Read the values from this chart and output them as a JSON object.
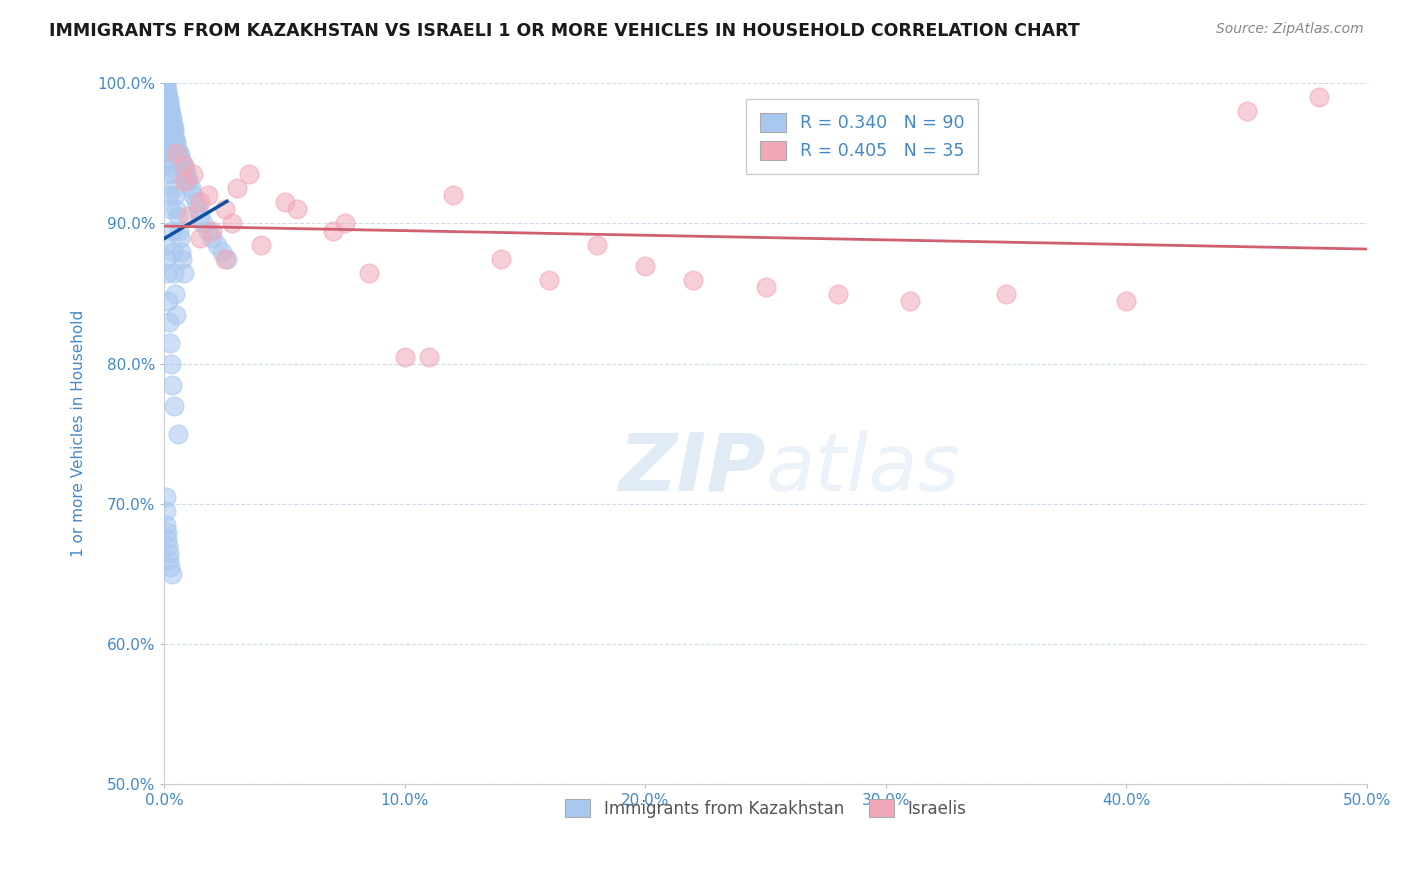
{
  "title": "IMMIGRANTS FROM KAZAKHSTAN VS ISRAELI 1 OR MORE VEHICLES IN HOUSEHOLD CORRELATION CHART",
  "source": "Source: ZipAtlas.com",
  "ylabel": "1 or more Vehicles in Household",
  "xlim": [
    0.0,
    50.0
  ],
  "ylim": [
    50.0,
    100.0
  ],
  "xticks": [
    0.0,
    10.0,
    20.0,
    30.0,
    40.0,
    50.0
  ],
  "yticks": [
    50.0,
    60.0,
    70.0,
    80.0,
    90.0,
    100.0
  ],
  "color_blue": "#A8C8F0",
  "color_pink": "#F0A8B8",
  "line_blue": "#1050A0",
  "line_pink": "#D06070",
  "legend_label1": "Immigrants from Kazakhstan",
  "legend_label2": "Israelis",
  "watermark_zip": "ZIP",
  "watermark_atlas": "atlas",
  "blue_x": [
    0.05,
    0.08,
    0.1,
    0.12,
    0.15,
    0.18,
    0.2,
    0.22,
    0.25,
    0.28,
    0.3,
    0.32,
    0.35,
    0.38,
    0.4,
    0.42,
    0.45,
    0.48,
    0.5,
    0.55,
    0.6,
    0.65,
    0.7,
    0.75,
    0.8,
    0.85,
    0.9,
    0.95,
    1.0,
    1.1,
    1.2,
    1.3,
    1.4,
    1.5,
    1.6,
    1.8,
    2.0,
    2.2,
    2.4,
    2.6,
    0.05,
    0.08,
    0.12,
    0.18,
    0.25,
    0.35,
    0.45,
    0.55,
    0.65,
    0.75,
    0.1,
    0.15,
    0.2,
    0.25,
    0.3,
    0.4,
    0.5,
    0.6,
    0.7,
    0.8,
    0.05,
    0.1,
    0.15,
    0.2,
    0.25,
    0.3,
    0.35,
    0.4,
    0.45,
    0.5,
    0.05,
    0.08,
    0.1,
    0.15,
    0.18,
    0.22,
    0.28,
    0.32,
    0.4,
    0.55,
    0.05,
    0.06,
    0.08,
    0.1,
    0.12,
    0.15,
    0.18,
    0.2,
    0.25,
    0.3
  ],
  "blue_y": [
    100.0,
    99.8,
    99.5,
    99.3,
    99.0,
    98.8,
    98.5,
    98.2,
    98.0,
    97.8,
    97.5,
    97.2,
    97.0,
    96.8,
    96.5,
    96.2,
    96.0,
    95.8,
    95.5,
    95.2,
    95.0,
    94.8,
    94.5,
    94.2,
    94.0,
    93.8,
    93.5,
    93.2,
    93.0,
    92.5,
    92.0,
    91.5,
    91.0,
    90.5,
    90.0,
    89.5,
    89.0,
    88.5,
    88.0,
    87.5,
    99.2,
    98.5,
    97.8,
    96.5,
    95.0,
    93.5,
    92.0,
    90.5,
    89.0,
    87.5,
    98.0,
    97.0,
    96.0,
    95.0,
    94.0,
    92.5,
    91.0,
    89.5,
    88.0,
    86.5,
    95.5,
    94.5,
    93.5,
    92.0,
    91.0,
    89.5,
    88.0,
    86.5,
    85.0,
    83.5,
    88.5,
    87.5,
    86.5,
    84.5,
    83.0,
    81.5,
    80.0,
    78.5,
    77.0,
    75.0,
    70.5,
    69.5,
    68.5,
    68.0,
    67.5,
    67.0,
    66.5,
    66.0,
    65.5,
    65.0
  ],
  "pink_x": [
    0.5,
    0.8,
    1.2,
    1.8,
    2.5,
    3.5,
    1.0,
    1.5,
    2.0,
    2.8,
    4.0,
    5.5,
    7.0,
    8.5,
    10.0,
    12.0,
    14.0,
    16.0,
    18.0,
    20.0,
    22.0,
    25.0,
    28.0,
    31.0,
    35.0,
    40.0,
    45.0,
    48.0,
    0.8,
    1.5,
    2.5,
    3.0,
    5.0,
    7.5,
    11.0
  ],
  "pink_y": [
    95.0,
    94.2,
    93.5,
    92.0,
    91.0,
    93.5,
    90.5,
    91.5,
    89.5,
    90.0,
    88.5,
    91.0,
    89.5,
    86.5,
    80.5,
    92.0,
    87.5,
    86.0,
    88.5,
    87.0,
    86.0,
    85.5,
    85.0,
    84.5,
    85.0,
    84.5,
    98.0,
    99.0,
    93.0,
    89.0,
    87.5,
    92.5,
    91.5,
    90.0,
    80.5
  ]
}
